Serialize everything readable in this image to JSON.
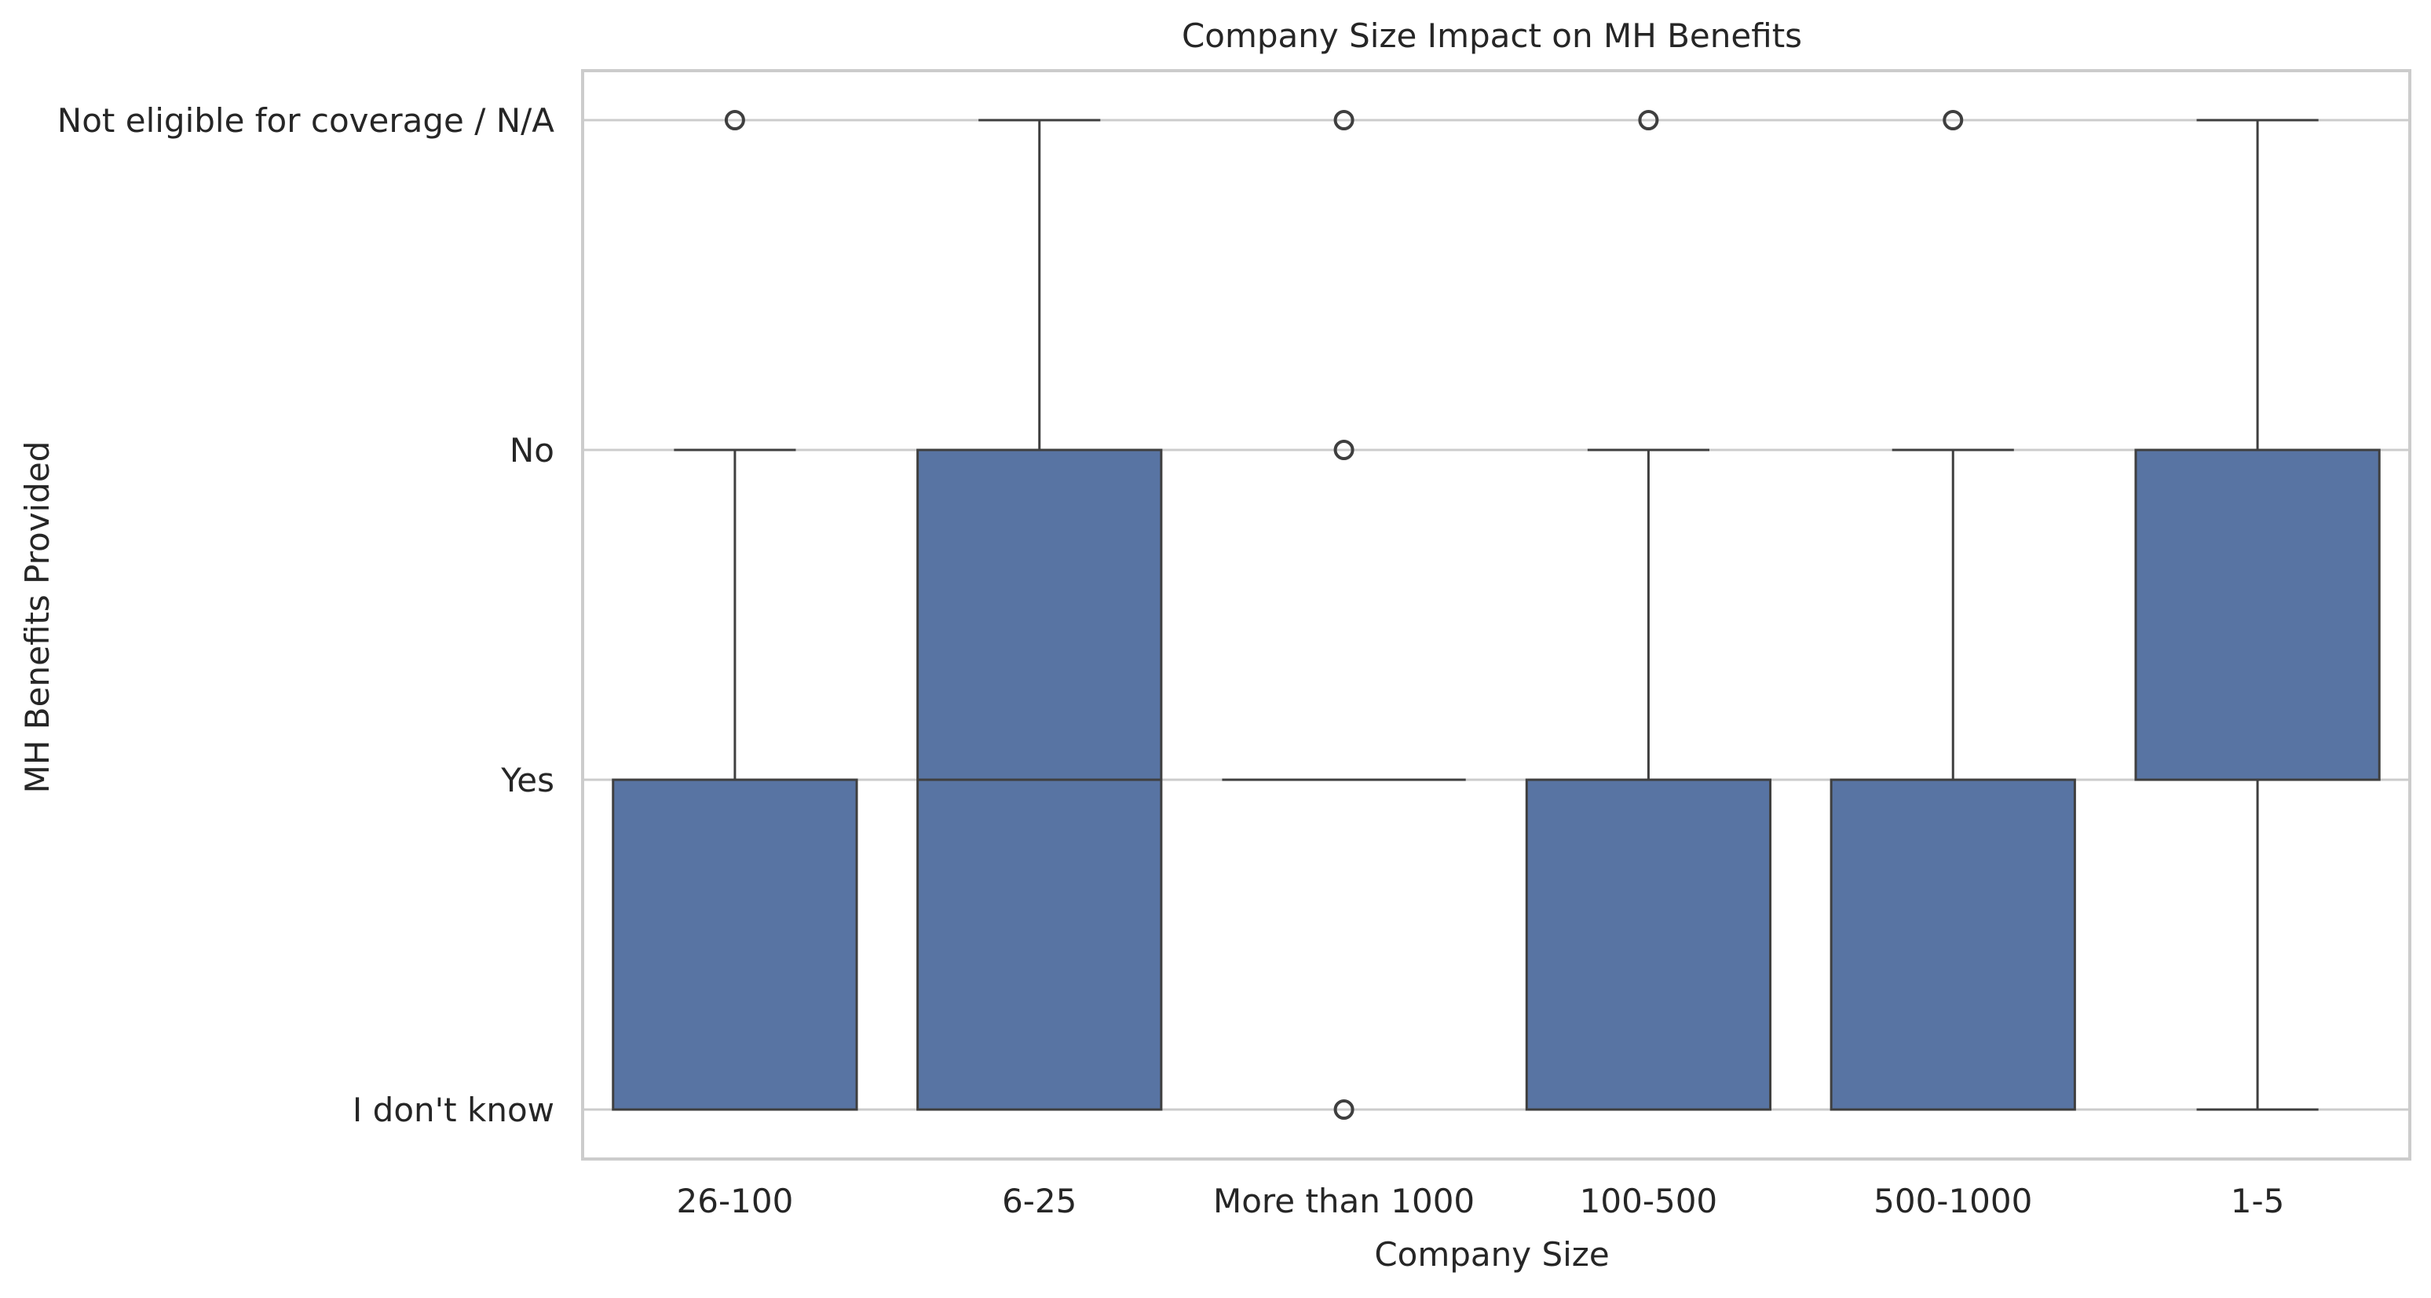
{
  "chart_data": {
    "type": "box",
    "title": "Company Size Impact on MH Benefits",
    "xlabel": "Company Size",
    "ylabel": "MH Benefits Provided",
    "y_categories": [
      "I don't know",
      "Yes",
      "No",
      "Not eligible for coverage / N/A"
    ],
    "categories": [
      "26-100",
      "6-25",
      "More than 1000",
      "100-500",
      "500-1000",
      "1-5"
    ],
    "boxes": [
      {
        "category": "26-100",
        "whisker_low": 0,
        "q1": 0,
        "median": 0,
        "q3": 1,
        "whisker_high": 2,
        "outliers": [
          3
        ]
      },
      {
        "category": "6-25",
        "whisker_low": 0,
        "q1": 0,
        "median": 1,
        "q3": 2,
        "whisker_high": 3,
        "outliers": []
      },
      {
        "category": "More than 1000",
        "whisker_low": 1,
        "q1": 1,
        "median": 1,
        "q3": 1,
        "whisker_high": 1,
        "outliers": [
          0,
          2,
          3
        ]
      },
      {
        "category": "100-500",
        "whisker_low": 0,
        "q1": 0,
        "median": 0,
        "q3": 1,
        "whisker_high": 2,
        "outliers": [
          3
        ]
      },
      {
        "category": "500-1000",
        "whisker_low": 0,
        "q1": 0,
        "median": 0,
        "q3": 1,
        "whisker_high": 2,
        "outliers": [
          3
        ]
      },
      {
        "category": "1-5",
        "whisker_low": 0,
        "q1": 1,
        "median": 1,
        "q3": 2,
        "whisker_high": 3,
        "outliers": []
      }
    ],
    "ylim": [
      -0.15,
      3.15
    ],
    "grid": true,
    "colors": {
      "box_fill": "#5874a3",
      "line": "#3f3f3f",
      "grid": "#cccccc",
      "frame": "#cccccc"
    }
  }
}
